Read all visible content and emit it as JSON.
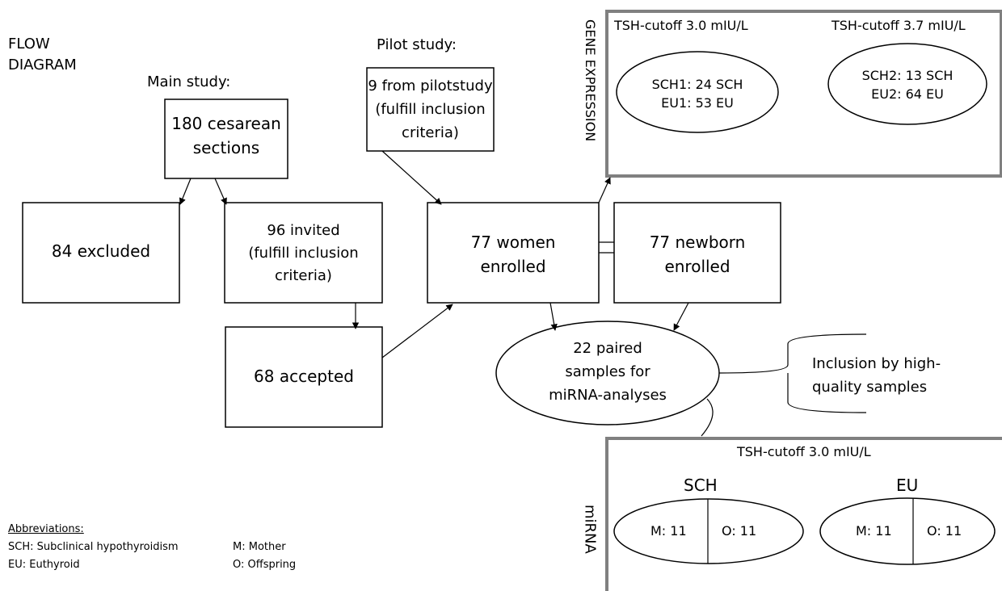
{
  "header": {
    "flow_line1": "FLOW",
    "flow_line2": "DIAGRAM"
  },
  "sections": {
    "main_study": "Main study:",
    "pilot_study": "Pilot study:"
  },
  "boxes": {
    "cesarean": [
      "180 cesarean",
      "sections"
    ],
    "pilot": [
      "9 from pilotstudy",
      "(fulfill inclusion",
      "criteria)"
    ],
    "excluded": [
      "84 excluded"
    ],
    "invited": [
      "96 invited",
      "(fulfill inclusion",
      "criteria)"
    ],
    "women": [
      "77 women",
      "enrolled"
    ],
    "newborn": [
      "77 newborn",
      "enrolled"
    ],
    "accepted": [
      "68 accepted"
    ]
  },
  "mirna_samples": [
    "22 paired",
    "samples for",
    "miRNA-analyses"
  ],
  "inclusion_note": [
    "Inclusion by high-",
    "quality samples"
  ],
  "gene_expression": {
    "label": "GENE EXPRESSION",
    "cutoff_a": "TSH-cutoff  3.0 mIU/L",
    "cutoff_b": "TSH-cutoff  3.7 mIU/L",
    "group_a": [
      "SCH1: 24 SCH",
      "EU1: 53 EU"
    ],
    "group_b": [
      "SCH2: 13 SCH",
      "EU2: 64 EU"
    ]
  },
  "mirna": {
    "label": "miRNA",
    "cutoff": "TSH-cutoff  3.0 mIU/L",
    "sch": {
      "title": "SCH",
      "mother": "M: 11",
      "offspring": "O: 11"
    },
    "eu": {
      "title": "EU",
      "mother": "M: 11",
      "offspring": "O: 11"
    }
  },
  "abbreviations": {
    "title": "Abbreviations:",
    "items": [
      "SCH: Subclinical hypothyroidism",
      "EU: Euthyroid",
      "M: Mother",
      "O: Offspring"
    ]
  }
}
